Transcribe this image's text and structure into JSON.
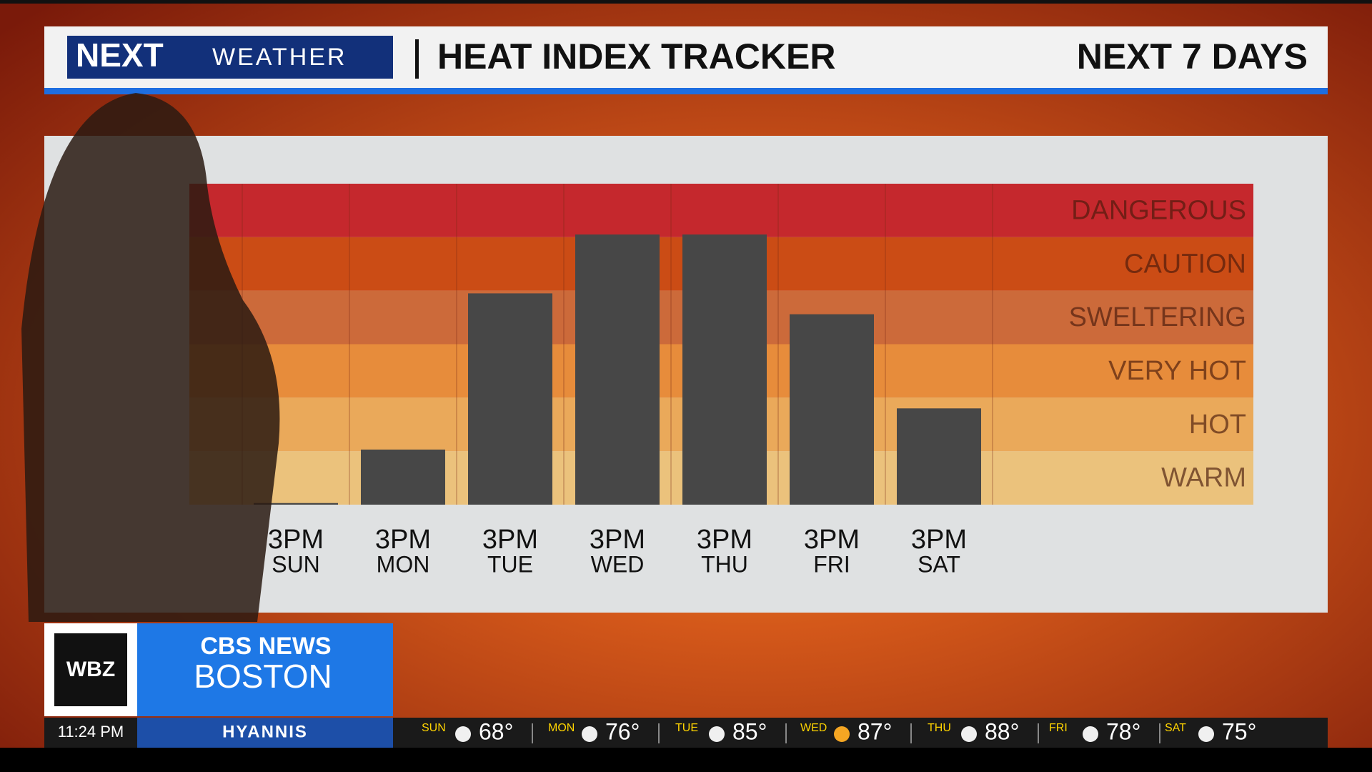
{
  "header": {
    "logo_next": "NEXT",
    "logo_weather": "WEATHER",
    "title": "HEAT INDEX TRACKER",
    "range": "NEXT 7 DAYS"
  },
  "chart_data": {
    "type": "bar",
    "categories": [
      "SUN",
      "MON",
      "TUE",
      "WED",
      "THU",
      "FRI",
      "SAT"
    ],
    "times": [
      "3PM",
      "3PM",
      "3PM",
      "3PM",
      "3PM",
      "3PM",
      "3PM"
    ],
    "values": [
      0.03,
      1.03,
      3.95,
      5.05,
      5.05,
      3.56,
      1.8
    ],
    "color": "#474747",
    "ylim": [
      0,
      6
    ],
    "bands": [
      {
        "label": "WARM",
        "color": "#ebc27c"
      },
      {
        "label": "HOT",
        "color": "#eaa95a"
      },
      {
        "label": "VERY HOT",
        "color": "#e78c3b"
      },
      {
        "label": "SWELTERING",
        "color": "#cc6a3a"
      },
      {
        "label": "CAUTION",
        "color": "#cb4c15"
      },
      {
        "label": "DANGEROUS",
        "color": "#c5282d"
      }
    ]
  },
  "station": {
    "call": "WBZ",
    "network": "CBS NEWS",
    "city": "BOSTON"
  },
  "ticker": {
    "time": "11:24 PM",
    "location": "HYANNIS",
    "days": [
      {
        "day": "SUN",
        "temp": "68°"
      },
      {
        "day": "MON",
        "temp": "76°"
      },
      {
        "day": "TUE",
        "temp": "85°"
      },
      {
        "day": "WED",
        "temp": "87°"
      },
      {
        "day": "THU",
        "temp": "88°"
      },
      {
        "day": "FRI",
        "temp": "78°"
      },
      {
        "day": "SAT",
        "temp": "75°"
      }
    ]
  }
}
